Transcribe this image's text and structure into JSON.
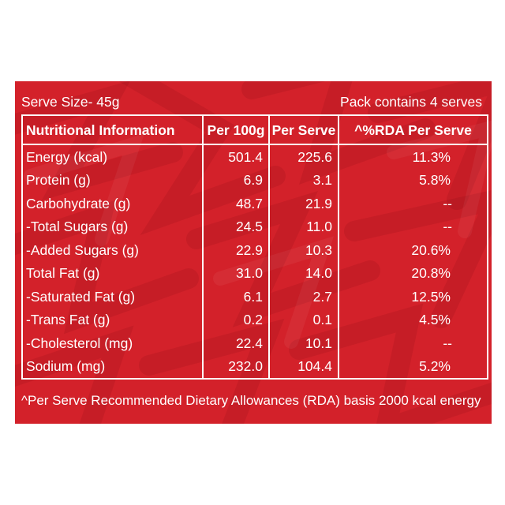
{
  "label": {
    "serve_size": "Serve Size- 45g",
    "pack_info": "Pack contains 4 serves",
    "headers": [
      "Nutritional Information",
      "Per 100g",
      "Per Serve",
      "^%RDA Per Serve"
    ],
    "rows": [
      {
        "name": "Energy (kcal)",
        "per100g": "501.4",
        "perServe": "225.6",
        "rda": "11.3%"
      },
      {
        "name": "Protein (g)",
        "per100g": "6.9",
        "perServe": "3.1",
        "rda": "5.8%"
      },
      {
        "name": "Carbohydrate (g)",
        "per100g": "48.7",
        "perServe": "21.9",
        "rda": "--"
      },
      {
        "name": "-Total Sugars (g)",
        "per100g": "24.5",
        "perServe": "11.0",
        "rda": "--"
      },
      {
        "name": "-Added Sugars (g)",
        "per100g": "22.9",
        "perServe": "10.3",
        "rda": "20.6%"
      },
      {
        "name": "Total Fat (g)",
        "per100g": "31.0",
        "perServe": "14.0",
        "rda": "20.8%"
      },
      {
        "name": "-Saturated Fat (g)",
        "per100g": "6.1",
        "perServe": "2.7",
        "rda": "12.5%"
      },
      {
        "name": "-Trans Fat (g)",
        "per100g": "0.2",
        "perServe": "0.1",
        "rda": "4.5%"
      },
      {
        "name": "-Cholesterol (mg)",
        "per100g": "22.4",
        "perServe": "10.1",
        "rda": "--"
      },
      {
        "name": "Sodium (mg)",
        "per100g": "232.0",
        "perServe": "104.4",
        "rda": "5.2%"
      }
    ],
    "footnote": "^Per Serve Recommended Dietary Allowances (RDA) basis 2000 kcal energy"
  },
  "colors": {
    "panel_background": "#d3212a",
    "text": "#ffffff",
    "page_background": "#ffffff"
  }
}
